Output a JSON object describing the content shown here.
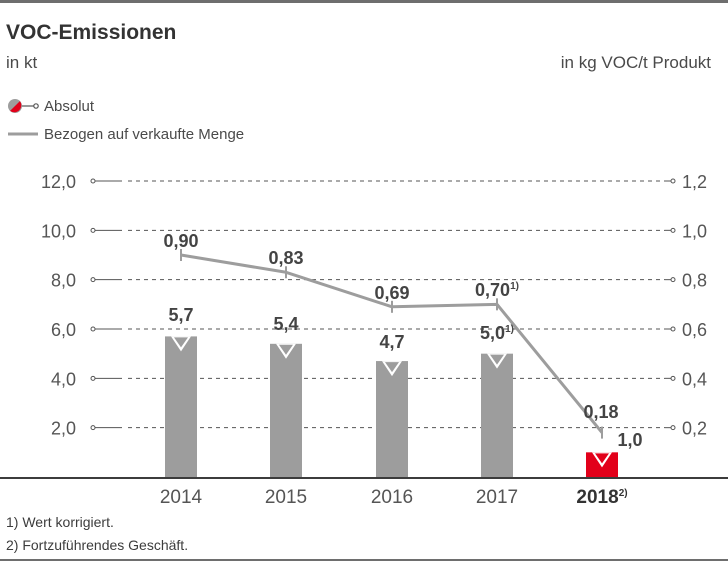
{
  "header": {
    "title": "VOC-Emissionen",
    "unit_left": "in kt",
    "unit_right": "in kg VOC/t Produkt"
  },
  "legend": {
    "absolute": "Absolut",
    "relative": "Bezogen auf verkaufte Menge"
  },
  "footnotes": [
    "1) Wert korrigiert.",
    "2) Fortzuführendes Geschäft."
  ],
  "colors": {
    "bar": "#9d9d9d",
    "highlight": "#e2001a",
    "line": "#9d9d9d",
    "grid": "#555555",
    "text": "#3c3c3c"
  },
  "chart_data": {
    "type": "bar",
    "categories": [
      "2014",
      "2015",
      "2016",
      "2017",
      "2018"
    ],
    "category_superscripts": [
      "",
      "",
      "",
      "",
      "2)"
    ],
    "series": [
      {
        "name": "Absolut",
        "axis": "left",
        "values": [
          5.7,
          5.4,
          4.7,
          5.0,
          1.0
        ],
        "labels": [
          "5,7",
          "5,4",
          "4,7",
          "5,0",
          "1,0"
        ],
        "label_superscripts": [
          "",
          "",
          "",
          "1)",
          ""
        ]
      },
      {
        "name": "Bezogen auf verkaufte Menge",
        "type": "line",
        "axis": "right",
        "values": [
          0.9,
          0.83,
          0.69,
          0.7,
          0.18
        ],
        "labels": [
          "0,90",
          "0,83",
          "0,69",
          "0,70",
          "0,18"
        ],
        "label_superscripts": [
          "",
          "",
          "",
          "1)",
          ""
        ]
      }
    ],
    "left_axis": {
      "ylim": [
        0,
        12
      ],
      "ticks": [
        "2,0",
        "4,0",
        "6,0",
        "8,0",
        "10,0",
        "12,0"
      ]
    },
    "right_axis": {
      "ylim": [
        0,
        1.2
      ],
      "ticks": [
        "0,2",
        "0,4",
        "0,6",
        "0,8",
        "1,0",
        "1,2"
      ]
    },
    "highlight_index": 4,
    "grid": "dashed-horizontal"
  }
}
